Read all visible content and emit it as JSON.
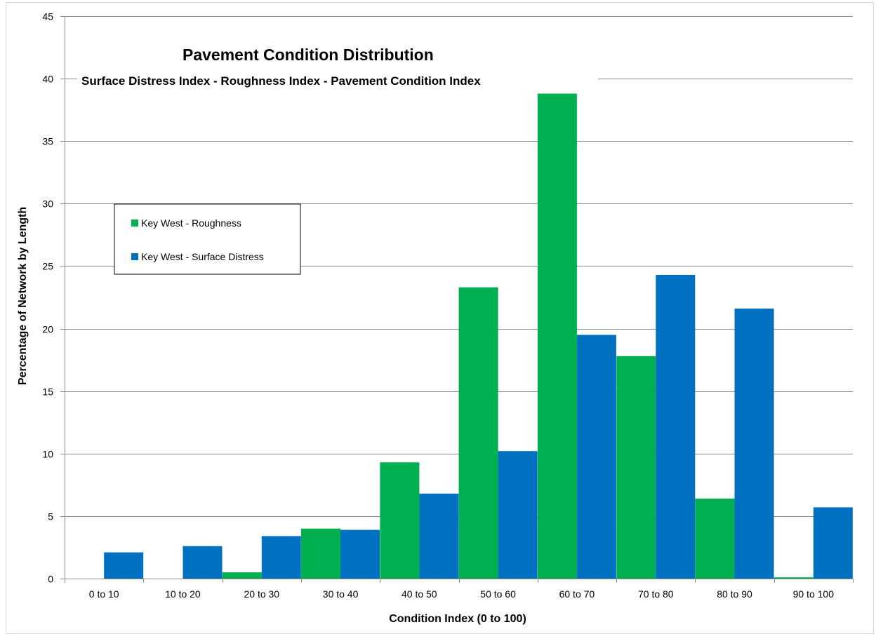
{
  "chart_data": {
    "type": "bar",
    "title": "Pavement Condition Distribution",
    "subtitle": "Surface Distress Index -  Roughness Index - Pavement Condition Index",
    "xlabel": "Condition Index (0 to 100)",
    "ylabel": "Percentage of Network by Length",
    "ylim": [
      0,
      45
    ],
    "yticks": [
      0,
      5,
      10,
      15,
      20,
      25,
      30,
      35,
      40,
      45
    ],
    "grid": true,
    "legend_position": "left",
    "categories": [
      "0 to 10",
      "10 to 20",
      "20 to 30",
      "30 to 40",
      "40 to 50",
      "50 to 60",
      "60 to 70",
      "70 to 80",
      "80 to 90",
      "90 to 100"
    ],
    "series": [
      {
        "name": "Key West - Roughness",
        "color": "#00B050",
        "values": [
          0,
          0,
          0.5,
          4.0,
          9.3,
          23.3,
          38.8,
          17.8,
          6.4,
          0.1
        ]
      },
      {
        "name": "Key West - Surface Distress",
        "color": "#0070C0",
        "values": [
          2.1,
          2.6,
          3.4,
          3.9,
          6.8,
          10.2,
          19.5,
          24.3,
          21.6,
          5.7
        ]
      }
    ]
  }
}
